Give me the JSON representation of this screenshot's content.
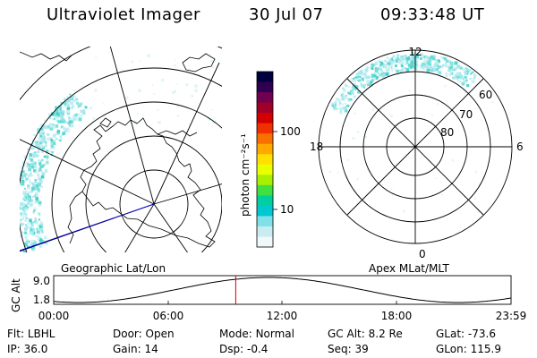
{
  "header": {
    "title": "Ultraviolet Imager",
    "date": "30 Jul 07",
    "time": "09:33:48 UT"
  },
  "colorbar": {
    "label": "photon cm⁻²s⁻¹",
    "ticks": [
      "100",
      "10"
    ],
    "colors": [
      "#000040",
      "#300050",
      "#700050",
      "#a00028",
      "#d20000",
      "#f03000",
      "#f87000",
      "#ffa800",
      "#ffe000",
      "#e8ff00",
      "#a8f000",
      "#40e040",
      "#00d0a0",
      "#00c8d0",
      "#80e0e8",
      "#c8ecf0",
      "#f0f8fa"
    ]
  },
  "left_map": {
    "caption": "Geographic Lat/Lon"
  },
  "right_map": {
    "caption": "Apex MLat/MLT",
    "mlt_labels": {
      "top": "12",
      "left": "18",
      "right": "6",
      "bottom": "0"
    },
    "lat_labels": [
      "60",
      "70",
      "80"
    ]
  },
  "timeline": {
    "axis_label": "GC Alt",
    "y_ticks": [
      "9.0",
      "1.8"
    ],
    "x_ticks": [
      "00:00",
      "06:00",
      "12:00",
      "18:00",
      "23:59"
    ],
    "current_time_fraction": 0.398
  },
  "footer": {
    "row1": [
      {
        "label": "Flt:",
        "value": "LBHL"
      },
      {
        "label": "Door:",
        "value": "Open"
      },
      {
        "label": "Mode:",
        "value": "Normal"
      },
      {
        "label": "GC Alt:",
        "value": "8.2 Re"
      },
      {
        "label": "GLat:",
        "value": "-73.6"
      }
    ],
    "row2": [
      {
        "label": "IP:",
        "value": "36.0"
      },
      {
        "label": "Gain:",
        "value": "14"
      },
      {
        "label": "Dsp:",
        "value": "-0.4"
      },
      {
        "label": "Seq:",
        "value": "39"
      },
      {
        "label": "GLon:",
        "value": "115.9"
      }
    ]
  }
}
